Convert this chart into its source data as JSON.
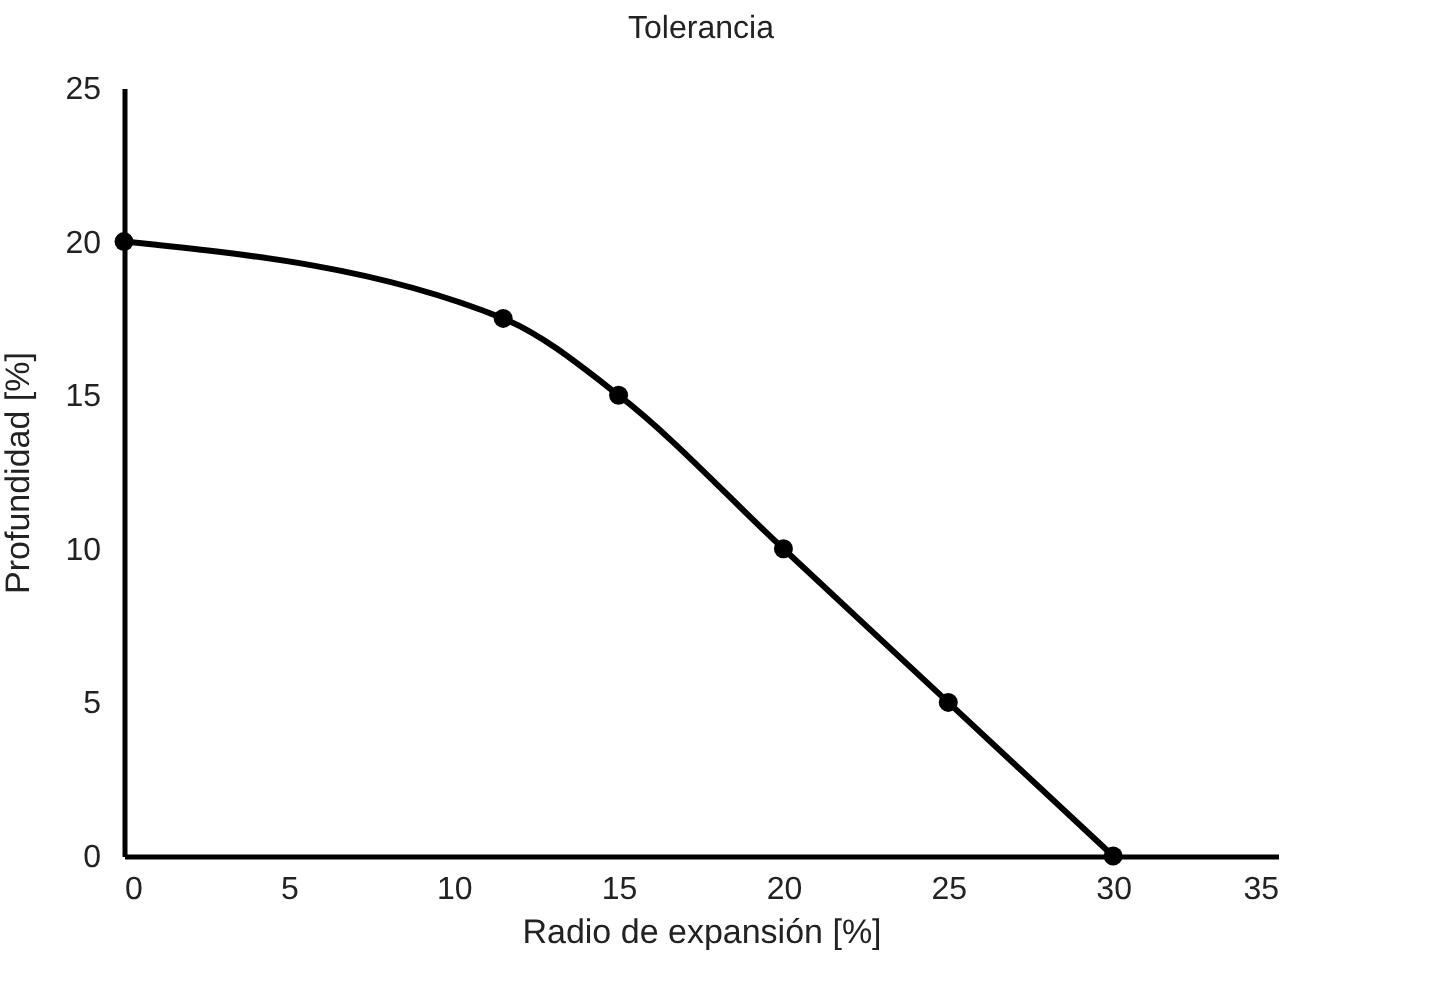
{
  "chart_data": {
    "type": "line",
    "title": "Tolerancia",
    "xlabel": "Radio de expansión [%]",
    "ylabel": "Profundidad [%]",
    "x": [
      0,
      11.5,
      15,
      20,
      25,
      30
    ],
    "series": [
      {
        "color": "#000000",
        "values": [
          20,
          17.5,
          15,
          10,
          5,
          0
        ]
      }
    ],
    "xlim": [
      0,
      35
    ],
    "xticks": [
      0,
      5,
      10,
      15,
      20,
      25,
      30,
      35
    ],
    "ylim": [
      0,
      25
    ],
    "yticks": [
      0,
      5,
      10,
      15,
      20,
      25
    ],
    "grid": false,
    "legend": false,
    "marker": "circle",
    "line_style": "solid"
  }
}
